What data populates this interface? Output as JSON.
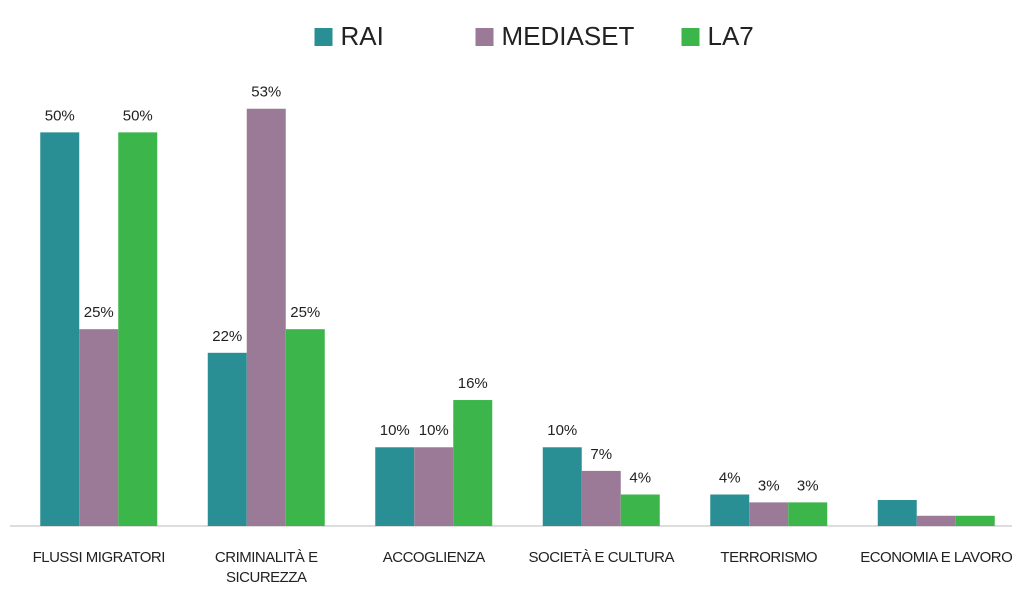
{
  "chart_data": {
    "type": "bar",
    "categories": [
      "FLUSSI MIGRATORI",
      "CRIMINALITÀ E SICUREZZA",
      "ACCOGLIENZA",
      "SOCIETÀ E CULTURA",
      "TERRORISMO",
      "ECONOMIA E LAVORO"
    ],
    "series": [
      {
        "name": "RAI",
        "color": "#2a8f94",
        "values": [
          50,
          22,
          10,
          10,
          4,
          3.3
        ],
        "value_labels": [
          "50%",
          "22%",
          "10%",
          "10%",
          "4%",
          null
        ]
      },
      {
        "name": "MEDIASET",
        "color": "#9a7a96",
        "values": [
          25,
          53,
          10,
          7,
          3,
          1.3
        ],
        "value_labels": [
          "25%",
          "53%",
          "10%",
          "7%",
          "3%",
          null
        ]
      },
      {
        "name": "LA7",
        "color": "#3cb54a",
        "values": [
          50,
          25,
          16,
          4,
          3,
          1.3
        ],
        "value_labels": [
          "50%",
          "25%",
          "16%",
          "4%",
          "3%",
          null
        ]
      }
    ],
    "ylim": [
      0,
      55
    ],
    "legend": "top"
  }
}
